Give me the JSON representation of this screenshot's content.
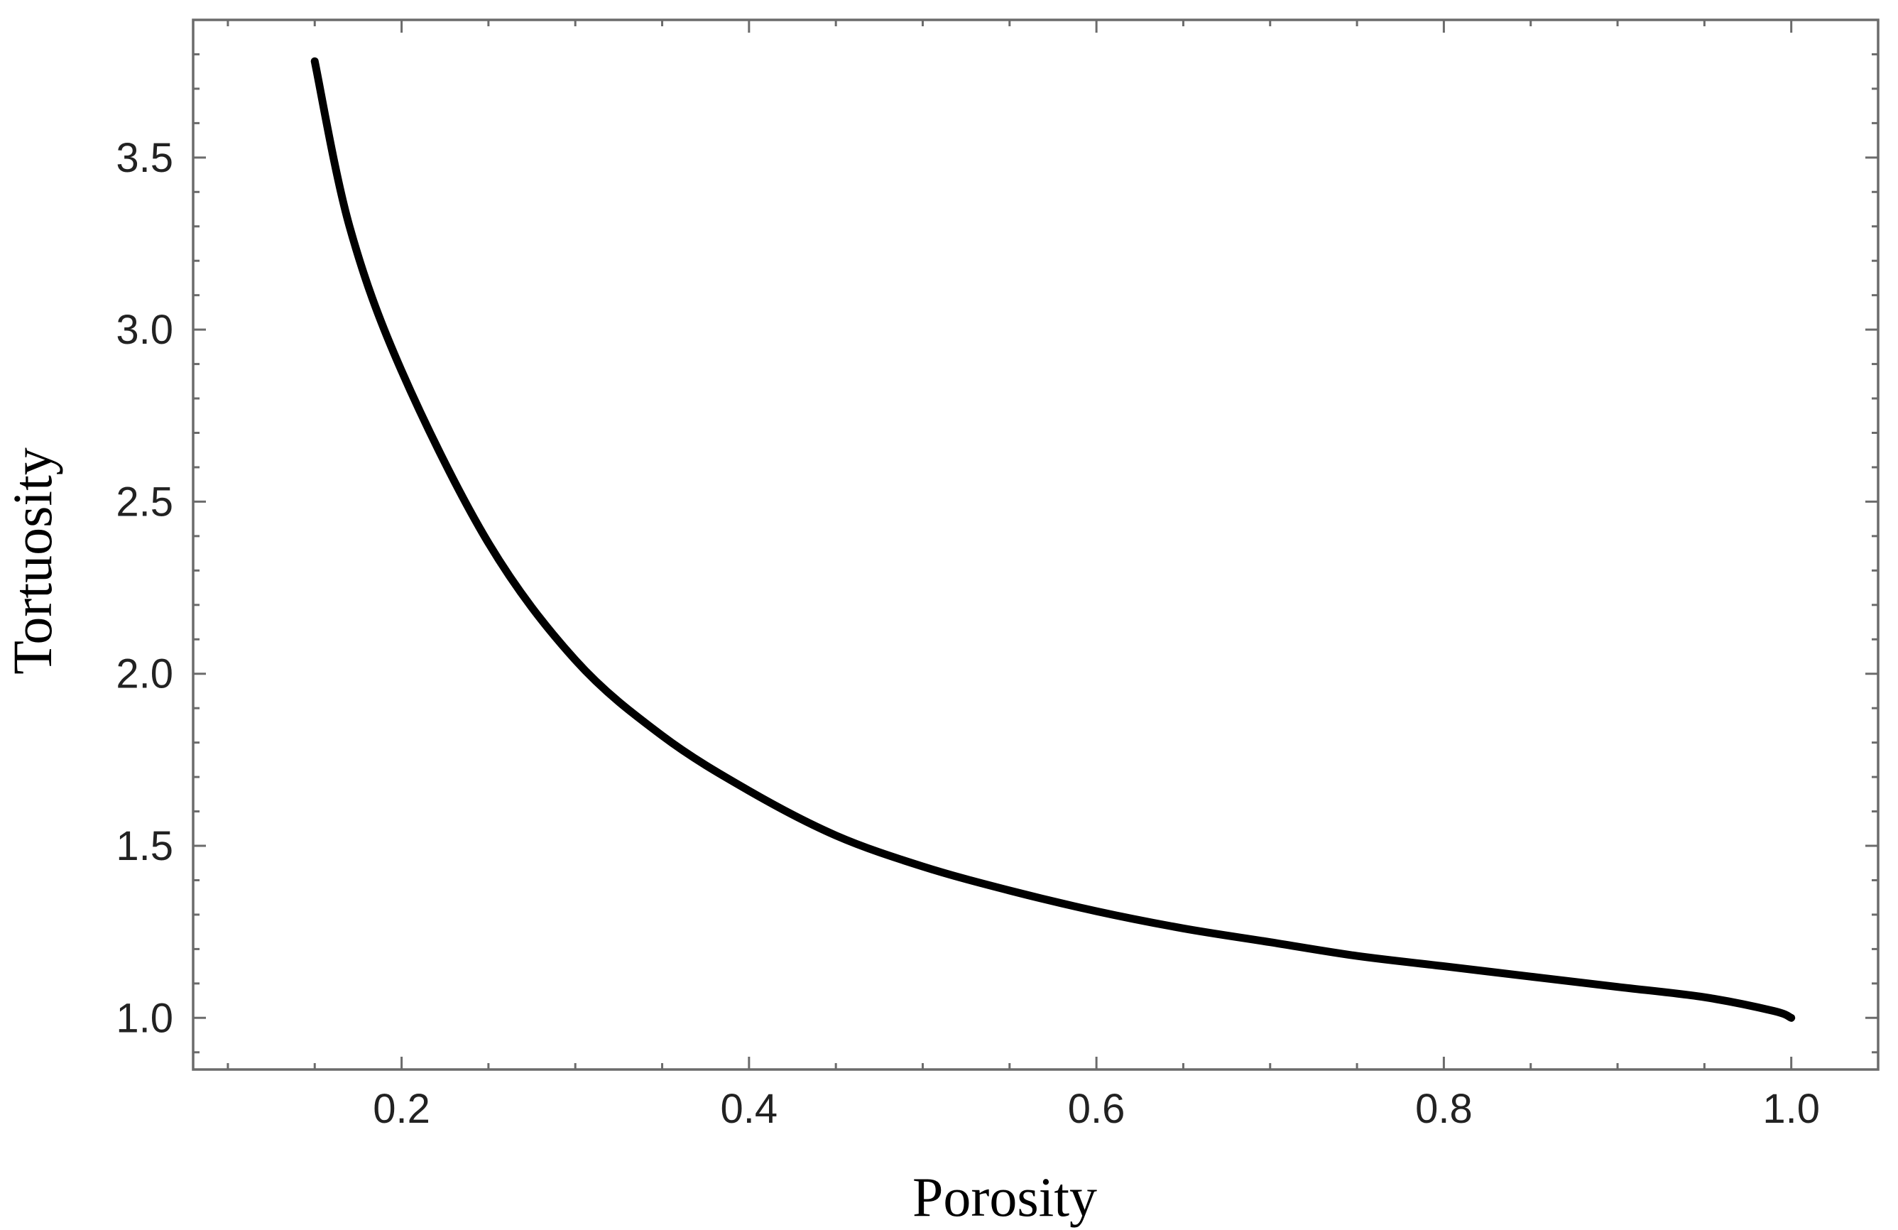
{
  "chart_data": {
    "type": "line",
    "title": "",
    "xlabel": "Porosity",
    "ylabel": "Tortuosity",
    "xlim": [
      0.08,
      1.05
    ],
    "ylim": [
      0.85,
      3.9
    ],
    "grid": false,
    "x_ticks": [
      {
        "value": 0.2,
        "label": "0.2"
      },
      {
        "value": 0.4,
        "label": "0.4"
      },
      {
        "value": 0.6,
        "label": "0.6"
      },
      {
        "value": 0.8,
        "label": "0.8"
      },
      {
        "value": 1.0,
        "label": "1.0"
      }
    ],
    "y_ticks": [
      {
        "value": 1.0,
        "label": "1.0"
      },
      {
        "value": 1.5,
        "label": "1.5"
      },
      {
        "value": 2.0,
        "label": "2.0"
      },
      {
        "value": 2.5,
        "label": "2.5"
      },
      {
        "value": 3.0,
        "label": "3.0"
      },
      {
        "value": 3.5,
        "label": "3.5"
      }
    ],
    "series": [
      {
        "color": "#000000",
        "x": [
          0.15,
          0.17,
          0.2,
          0.25,
          0.3,
          0.35,
          0.4,
          0.45,
          0.5,
          0.55,
          0.6,
          0.65,
          0.7,
          0.75,
          0.8,
          0.85,
          0.9,
          0.95,
          0.99,
          1.0
        ],
        "y": [
          3.78,
          3.3,
          2.88,
          2.38,
          2.04,
          1.82,
          1.66,
          1.53,
          1.44,
          1.37,
          1.31,
          1.26,
          1.22,
          1.18,
          1.15,
          1.12,
          1.09,
          1.06,
          1.02,
          1.0
        ]
      }
    ]
  }
}
